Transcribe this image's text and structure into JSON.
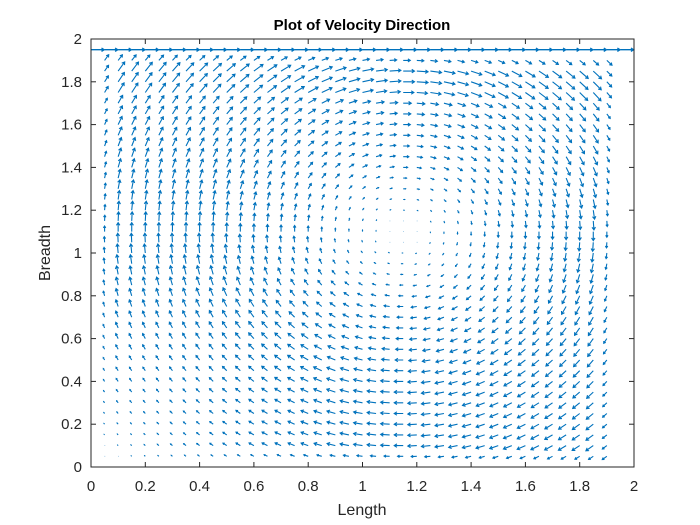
{
  "chart_data": {
    "type": "quiver",
    "title": "Plot of Velocity Direction",
    "xlabel": "Length",
    "ylabel": "Breadth",
    "xlim": [
      0,
      2
    ],
    "ylim": [
      0,
      2
    ],
    "xticks": [
      0,
      0.2,
      0.4,
      0.6,
      0.8,
      1,
      1.2,
      1.4,
      1.6,
      1.8,
      2
    ],
    "yticks": [
      0,
      0.2,
      0.4,
      0.6,
      0.8,
      1,
      1.2,
      1.4,
      1.6,
      1.8,
      2
    ],
    "xtick_labels": [
      "0",
      "0.2",
      "0.4",
      "0.6",
      "0.8",
      "1",
      "1.2",
      "1.4",
      "1.6",
      "1.8",
      "2"
    ],
    "ytick_labels": [
      "0",
      "0.2",
      "0.4",
      "0.6",
      "0.8",
      "1",
      "1.2",
      "1.4",
      "1.6",
      "1.8",
      "2"
    ],
    "grid": false,
    "legend": "none",
    "arrow_color": "#0072BD",
    "field": {
      "description": "lid-driven cavity flow, clockwise primary vortex",
      "grid_x_start": 0.05,
      "grid_x_end": 1.9,
      "grid_x_step": 0.05,
      "grid_y_start": 0.05,
      "grid_y_end": 1.9,
      "grid_y_step": 0.05,
      "vortex_center": [
        1.15,
        1.1
      ],
      "lid_row_y": 1.95,
      "lid_row_x_start": 0.0,
      "lid_row_x_end": 1.95,
      "lid_velocity": 1.0
    }
  }
}
